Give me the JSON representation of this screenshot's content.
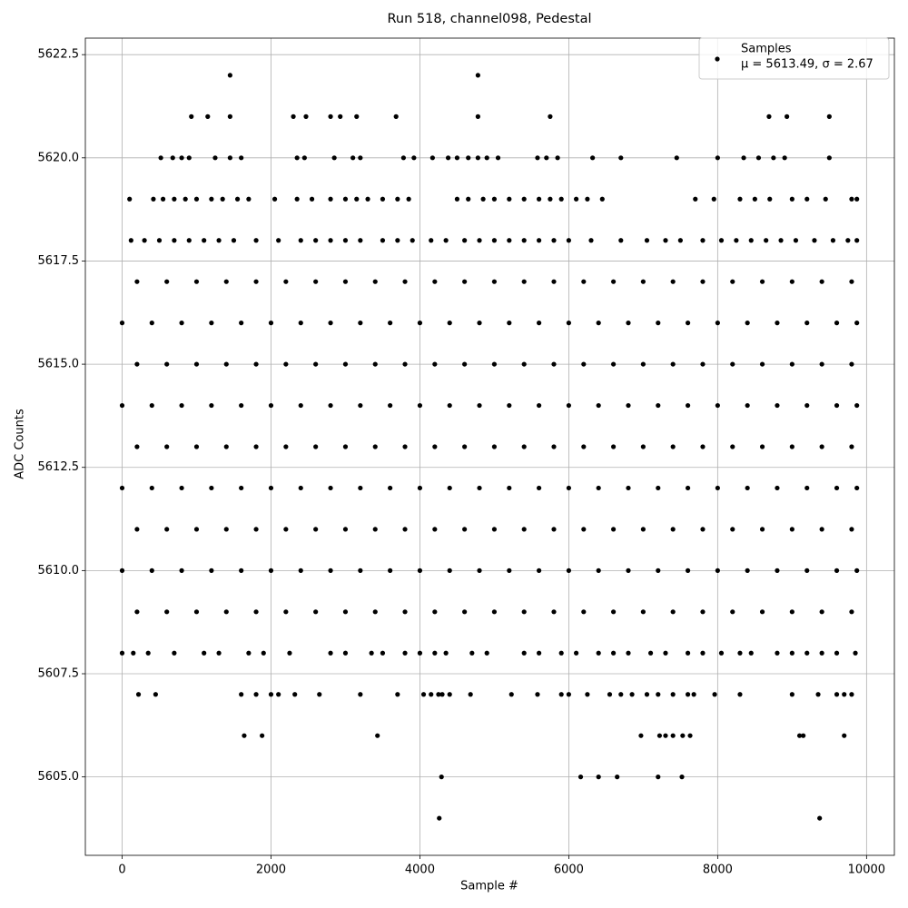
{
  "chart_data": {
    "type": "scatter",
    "title": "Run 518, channel098, Pedestal",
    "x_label": "Sample #",
    "y_label": "ADC Counts",
    "legend_note": "μ = 5613.49, σ = 2.67",
    "legend_position": "upper right",
    "grid": true,
    "xlim": [
      -494,
      10374
    ],
    "ylim": [
      5603.1,
      5622.9
    ],
    "xticks": [
      0,
      2000,
      4000,
      6000,
      8000,
      10000
    ],
    "yticks": [
      {
        "value": 5605,
        "label": "5605.0"
      },
      {
        "value": 5607.5,
        "label": "5607.5"
      },
      {
        "value": 5610,
        "label": "5610.0"
      },
      {
        "value": 5612.5,
        "label": "5612.5"
      },
      {
        "value": 5615,
        "label": "5615.0"
      },
      {
        "value": 5617.5,
        "label": "5617.5"
      },
      {
        "value": 5620,
        "label": "5620.0"
      },
      {
        "value": 5622.5,
        "label": "5622.5"
      }
    ],
    "series": [
      {
        "name": "Samples",
        "color": "#000000",
        "x": [
          1450,
          4780,
          930,
          1150,
          1450,
          2300,
          2470,
          2800,
          2930,
          3150,
          3680,
          4780,
          5750,
          8690,
          8930,
          9500,
          520,
          680,
          800,
          900,
          1250,
          1450,
          1600,
          2350,
          2450,
          2850,
          3100,
          3200,
          3780,
          3920,
          4170,
          4380,
          4500,
          4650,
          4780,
          4900,
          5050,
          5580,
          5700,
          5850,
          6320,
          6700,
          7450,
          8000,
          8350,
          8550,
          8750,
          8900,
          9500,
          100,
          420,
          550,
          700,
          850,
          1000,
          1200,
          1350,
          1550,
          1700,
          2050,
          2350,
          2550,
          2800,
          3000,
          3150,
          3300,
          3500,
          3700,
          3850,
          4500,
          4650,
          4850,
          5000,
          5200,
          5400,
          5600,
          5750,
          5900,
          6100,
          6250,
          6450,
          7700,
          7950,
          8300,
          8500,
          8700,
          9000,
          9200,
          9450,
          9800,
          9870,
          120,
          300,
          500,
          700,
          900,
          1100,
          1300,
          1500,
          1800,
          2100,
          2400,
          2600,
          2800,
          3000,
          3200,
          3500,
          3700,
          3900,
          4150,
          4350,
          4600,
          4800,
          5000,
          5200,
          5400,
          5600,
          5800,
          6000,
          6300,
          6700,
          7050,
          7300,
          7500,
          7800,
          8050,
          8250,
          8450,
          8650,
          8850,
          9050,
          9300,
          9550,
          9750,
          9870,
          200,
          600,
          1000,
          1400,
          1800,
          2200,
          2600,
          3000,
          3400,
          3800,
          4200,
          4600,
          5000,
          5400,
          5800,
          6200,
          6600,
          7000,
          7400,
          7800,
          8200,
          8600,
          9000,
          9400,
          9800,
          0,
          400,
          800,
          1200,
          1600,
          2000,
          2400,
          2800,
          3200,
          3600,
          4000,
          4400,
          4800,
          5200,
          5600,
          6000,
          6400,
          6800,
          7200,
          7600,
          8000,
          8400,
          8800,
          9200,
          9600,
          9870,
          200,
          600,
          1000,
          1400,
          1800,
          2200,
          2600,
          3000,
          3400,
          3800,
          4200,
          4600,
          5000,
          5400,
          5800,
          6200,
          6600,
          7000,
          7400,
          7800,
          8200,
          8600,
          9000,
          9400,
          9800,
          0,
          400,
          800,
          1200,
          1600,
          2000,
          2400,
          2800,
          3200,
          3600,
          4000,
          4400,
          4800,
          5200,
          5600,
          6000,
          6400,
          6800,
          7200,
          7600,
          8000,
          8400,
          8800,
          9200,
          9600,
          9870,
          200,
          600,
          1000,
          1400,
          1800,
          2200,
          2600,
          3000,
          3400,
          3800,
          4200,
          4600,
          5000,
          5400,
          5800,
          6200,
          6600,
          7000,
          7400,
          7800,
          8200,
          8600,
          9000,
          9400,
          9800,
          0,
          400,
          800,
          1200,
          1600,
          2000,
          2400,
          2800,
          3200,
          3600,
          4000,
          4400,
          4800,
          5200,
          5600,
          6000,
          6400,
          6800,
          7200,
          7600,
          8000,
          8400,
          8800,
          9200,
          9600,
          9870,
          200,
          600,
          1000,
          1400,
          1800,
          2200,
          2600,
          3000,
          3400,
          3800,
          4200,
          4600,
          5000,
          5400,
          5800,
          6200,
          6600,
          7000,
          7400,
          7800,
          8200,
          8600,
          9000,
          9400,
          9800,
          0,
          400,
          800,
          1200,
          1600,
          2000,
          2400,
          2800,
          3200,
          3600,
          4000,
          4400,
          4800,
          5200,
          5600,
          6000,
          6400,
          6800,
          7200,
          7600,
          8000,
          8400,
          8800,
          9200,
          9600,
          9870,
          200,
          600,
          1000,
          1400,
          1800,
          2200,
          2600,
          3000,
          3400,
          3800,
          4200,
          4600,
          5000,
          5400,
          5800,
          6200,
          6600,
          7000,
          7400,
          7800,
          8200,
          8600,
          9000,
          9400,
          9800,
          0,
          150,
          350,
          700,
          1100,
          1300,
          1700,
          1900,
          2250,
          2800,
          3000,
          3350,
          3500,
          3800,
          4000,
          4200,
          4350,
          4700,
          4900,
          5400,
          5600,
          5900,
          6100,
          6400,
          6600,
          6800,
          7100,
          7300,
          7600,
          7800,
          8050,
          8300,
          8450,
          8800,
          9000,
          9200,
          9400,
          9600,
          9850,
          220,
          450,
          1600,
          1800,
          2000,
          2100,
          2320,
          2650,
          3200,
          3700,
          4050,
          4150,
          4250,
          4300,
          4400,
          4680,
          5230,
          5580,
          5900,
          6000,
          6250,
          6550,
          6700,
          6850,
          7050,
          7200,
          7400,
          7600,
          7680,
          7960,
          8300,
          9000,
          9350,
          9600,
          9700,
          9800,
          1640,
          1880,
          3430,
          6970,
          7220,
          7300,
          7400,
          7530,
          7630,
          9100,
          9150,
          9700,
          4290,
          6160,
          6400,
          6650,
          7200,
          7520,
          4260,
          9370
        ],
        "values": [
          5622,
          5622,
          5621,
          5621,
          5621,
          5621,
          5621,
          5621,
          5621,
          5621,
          5621,
          5621,
          5621,
          5621,
          5621,
          5621,
          5620,
          5620,
          5620,
          5620,
          5620,
          5620,
          5620,
          5620,
          5620,
          5620,
          5620,
          5620,
          5620,
          5620,
          5620,
          5620,
          5620,
          5620,
          5620,
          5620,
          5620,
          5620,
          5620,
          5620,
          5620,
          5620,
          5620,
          5620,
          5620,
          5620,
          5620,
          5620,
          5620,
          5619,
          5619,
          5619,
          5619,
          5619,
          5619,
          5619,
          5619,
          5619,
          5619,
          5619,
          5619,
          5619,
          5619,
          5619,
          5619,
          5619,
          5619,
          5619,
          5619,
          5619,
          5619,
          5619,
          5619,
          5619,
          5619,
          5619,
          5619,
          5619,
          5619,
          5619,
          5619,
          5619,
          5619,
          5619,
          5619,
          5619,
          5619,
          5619,
          5619,
          5619,
          5619,
          5618,
          5618,
          5618,
          5618,
          5618,
          5618,
          5618,
          5618,
          5618,
          5618,
          5618,
          5618,
          5618,
          5618,
          5618,
          5618,
          5618,
          5618,
          5618,
          5618,
          5618,
          5618,
          5618,
          5618,
          5618,
          5618,
          5618,
          5618,
          5618,
          5618,
          5618,
          5618,
          5618,
          5618,
          5618,
          5618,
          5618,
          5618,
          5618,
          5618,
          5618,
          5618,
          5618,
          5618,
          5617,
          5617,
          5617,
          5617,
          5617,
          5617,
          5617,
          5617,
          5617,
          5617,
          5617,
          5617,
          5617,
          5617,
          5617,
          5617,
          5617,
          5617,
          5617,
          5617,
          5617,
          5617,
          5617,
          5617,
          5617,
          5616,
          5616,
          5616,
          5616,
          5616,
          5616,
          5616,
          5616,
          5616,
          5616,
          5616,
          5616,
          5616,
          5616,
          5616,
          5616,
          5616,
          5616,
          5616,
          5616,
          5616,
          5616,
          5616,
          5616,
          5616,
          5616,
          5615,
          5615,
          5615,
          5615,
          5615,
          5615,
          5615,
          5615,
          5615,
          5615,
          5615,
          5615,
          5615,
          5615,
          5615,
          5615,
          5615,
          5615,
          5615,
          5615,
          5615,
          5615,
          5615,
          5615,
          5615,
          5614,
          5614,
          5614,
          5614,
          5614,
          5614,
          5614,
          5614,
          5614,
          5614,
          5614,
          5614,
          5614,
          5614,
          5614,
          5614,
          5614,
          5614,
          5614,
          5614,
          5614,
          5614,
          5614,
          5614,
          5614,
          5614,
          5613,
          5613,
          5613,
          5613,
          5613,
          5613,
          5613,
          5613,
          5613,
          5613,
          5613,
          5613,
          5613,
          5613,
          5613,
          5613,
          5613,
          5613,
          5613,
          5613,
          5613,
          5613,
          5613,
          5613,
          5613,
          5612,
          5612,
          5612,
          5612,
          5612,
          5612,
          5612,
          5612,
          5612,
          5612,
          5612,
          5612,
          5612,
          5612,
          5612,
          5612,
          5612,
          5612,
          5612,
          5612,
          5612,
          5612,
          5612,
          5612,
          5612,
          5612,
          5611,
          5611,
          5611,
          5611,
          5611,
          5611,
          5611,
          5611,
          5611,
          5611,
          5611,
          5611,
          5611,
          5611,
          5611,
          5611,
          5611,
          5611,
          5611,
          5611,
          5611,
          5611,
          5611,
          5611,
          5611,
          5610,
          5610,
          5610,
          5610,
          5610,
          5610,
          5610,
          5610,
          5610,
          5610,
          5610,
          5610,
          5610,
          5610,
          5610,
          5610,
          5610,
          5610,
          5610,
          5610,
          5610,
          5610,
          5610,
          5610,
          5610,
          5610,
          5609,
          5609,
          5609,
          5609,
          5609,
          5609,
          5609,
          5609,
          5609,
          5609,
          5609,
          5609,
          5609,
          5609,
          5609,
          5609,
          5609,
          5609,
          5609,
          5609,
          5609,
          5609,
          5609,
          5609,
          5609,
          5608,
          5608,
          5608,
          5608,
          5608,
          5608,
          5608,
          5608,
          5608,
          5608,
          5608,
          5608,
          5608,
          5608,
          5608,
          5608,
          5608,
          5608,
          5608,
          5608,
          5608,
          5608,
          5608,
          5608,
          5608,
          5608,
          5608,
          5608,
          5608,
          5608,
          5608,
          5608,
          5608,
          5608,
          5608,
          5608,
          5608,
          5608,
          5608,
          5607,
          5607,
          5607,
          5607,
          5607,
          5607,
          5607,
          5607,
          5607,
          5607,
          5607,
          5607,
          5607,
          5607,
          5607,
          5607,
          5607,
          5607,
          5607,
          5607,
          5607,
          5607,
          5607,
          5607,
          5607,
          5607,
          5607,
          5607,
          5607,
          5607,
          5607,
          5607,
          5607,
          5607,
          5607,
          5607,
          5606,
          5606,
          5606,
          5606,
          5606,
          5606,
          5606,
          5606,
          5606,
          5606,
          5606,
          5606,
          5605,
          5605,
          5605,
          5605,
          5605,
          5605,
          5604,
          5604
        ]
      }
    ]
  }
}
